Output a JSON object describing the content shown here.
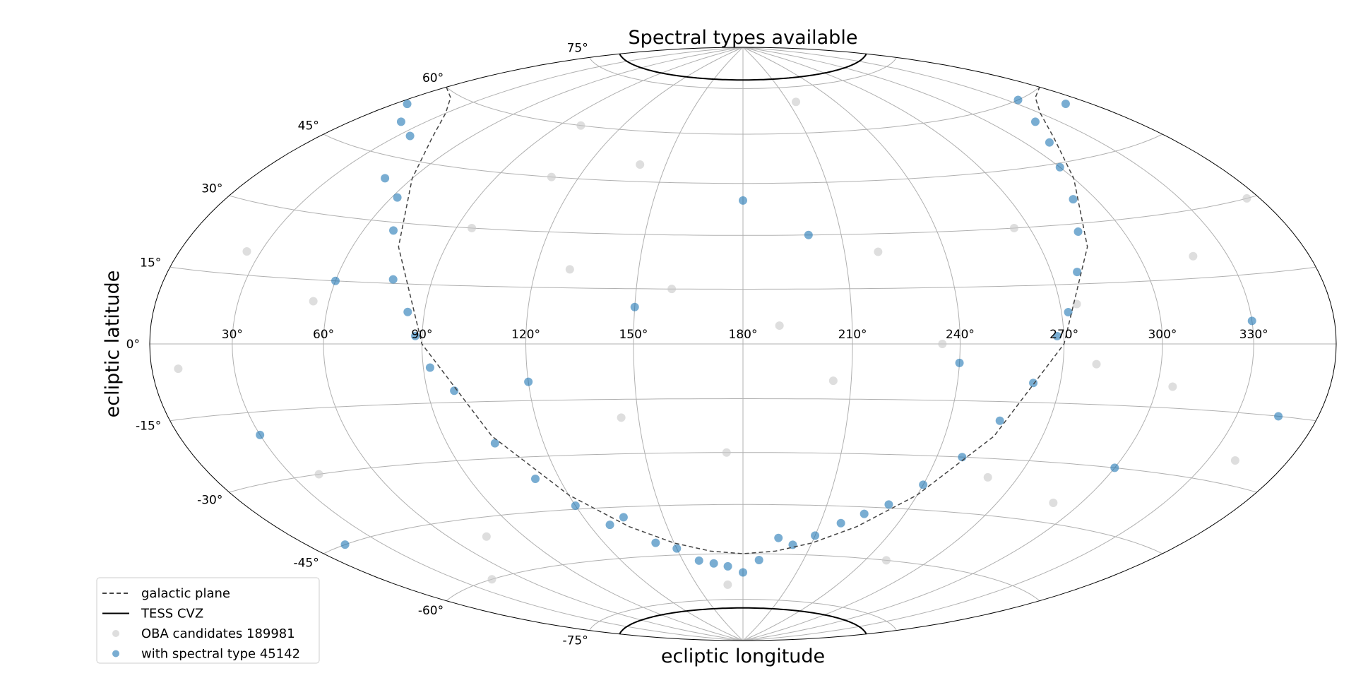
{
  "chart_data": {
    "type": "scatter",
    "projection": "hammer",
    "title": "Spectral types available",
    "x_label": "ecliptic longitude",
    "y_label": "ecliptic latitude",
    "xlim": [
      0,
      360
    ],
    "ylim": [
      -90,
      90
    ],
    "xticks": [
      {
        "value": 30,
        "label": "30°"
      },
      {
        "value": 60,
        "label": "60°"
      },
      {
        "value": 90,
        "label": "90°"
      },
      {
        "value": 120,
        "label": "120°"
      },
      {
        "value": 150,
        "label": "150°"
      },
      {
        "value": 180,
        "label": "180°"
      },
      {
        "value": 210,
        "label": "210°"
      },
      {
        "value": 240,
        "label": "240°"
      },
      {
        "value": 270,
        "label": "270°"
      },
      {
        "value": 300,
        "label": "300°"
      },
      {
        "value": 330,
        "label": "330°"
      }
    ],
    "yticks": [
      {
        "value": -75,
        "label": "-75°"
      },
      {
        "value": -60,
        "label": "-60°"
      },
      {
        "value": -45,
        "label": "-45°"
      },
      {
        "value": -30,
        "label": "-30°"
      },
      {
        "value": -15,
        "label": "-15°"
      },
      {
        "value": 0,
        "label": "0°"
      },
      {
        "value": 15,
        "label": "15°"
      },
      {
        "value": 30,
        "label": "30°"
      },
      {
        "value": 45,
        "label": "45°"
      },
      {
        "value": 60,
        "label": "60°"
      },
      {
        "value": 75,
        "label": "75°"
      }
    ],
    "grid": true,
    "legend": "lower left",
    "series": [
      {
        "name": "galactic plane",
        "kind": "line",
        "linestyle": "dashed",
        "color": "#444444",
        "x": [
          0,
          15,
          30,
          45,
          60,
          75,
          90,
          105,
          120,
          135,
          150,
          165,
          180,
          195,
          210,
          225,
          240,
          255,
          270,
          285,
          300,
          315,
          330,
          345,
          360
        ],
        "values": [
          60,
          59.1,
          56.3,
          50.8,
          40.9,
          24.1,
          0,
          -24.1,
          -40.9,
          -50.8,
          -56.3,
          -59.1,
          -60,
          -59.1,
          -56.3,
          -50.8,
          -40.9,
          -24.1,
          0,
          24.1,
          40.9,
          50.8,
          56.3,
          59.1,
          60
        ]
      },
      {
        "name": "TESS CVZ",
        "kind": "parallel",
        "linestyle": "solid",
        "color": "#000000",
        "values": [
          78,
          -78
        ]
      },
      {
        "name": "OBA candidates 189981",
        "kind": "points",
        "color": "#c8c8c8",
        "x": [
          10,
          25,
          40,
          55,
          75,
          95,
          110,
          130,
          145,
          160,
          175,
          190,
          205,
          220,
          235,
          250,
          265,
          275,
          280,
          290,
          305,
          318,
          340,
          355,
          100,
          170,
          215,
          260,
          45,
          140
        ],
        "values": [
          -5,
          20,
          -30,
          10,
          -50,
          30,
          45,
          20,
          -20,
          15,
          -30,
          5,
          -10,
          25,
          0,
          -60,
          30,
          10,
          -5,
          -40,
          -10,
          20,
          -25,
          30,
          60,
          -70,
          70,
          -35,
          -60,
          50
        ]
      },
      {
        "name": "with spectral type 45142",
        "kind": "points",
        "color": "#1f77b4",
        "x": [
          5,
          20,
          35,
          50,
          62,
          70,
          78,
          85,
          88,
          92,
          98,
          105,
          112,
          120,
          128,
          135,
          142,
          150,
          158,
          165,
          172,
          180,
          188,
          195,
          202,
          210,
          218,
          225,
          232,
          240,
          248,
          255,
          262,
          268,
          272,
          278,
          285,
          292,
          300,
          310,
          320,
          335,
          350,
          30,
          150,
          200,
          240,
          300,
          60,
          120,
          180,
          330,
          15,
          345
        ],
        "values": [
          55,
          52,
          50,
          40,
          36,
          28,
          16,
          8,
          2,
          -6,
          -12,
          -26,
          -36,
          -44,
          -50,
          -48,
          -56,
          -58,
          -62,
          -63,
          -64,
          -66,
          -62,
          -55,
          -57,
          -54,
          -50,
          -47,
          -44,
          -38,
          -30,
          -20,
          -10,
          2,
          8,
          18,
          28,
          36,
          44,
          50,
          55,
          60,
          56,
          -20,
          10,
          30,
          -5,
          -30,
          15,
          -10,
          40,
          5,
          -45,
          -15
        ]
      }
    ]
  }
}
